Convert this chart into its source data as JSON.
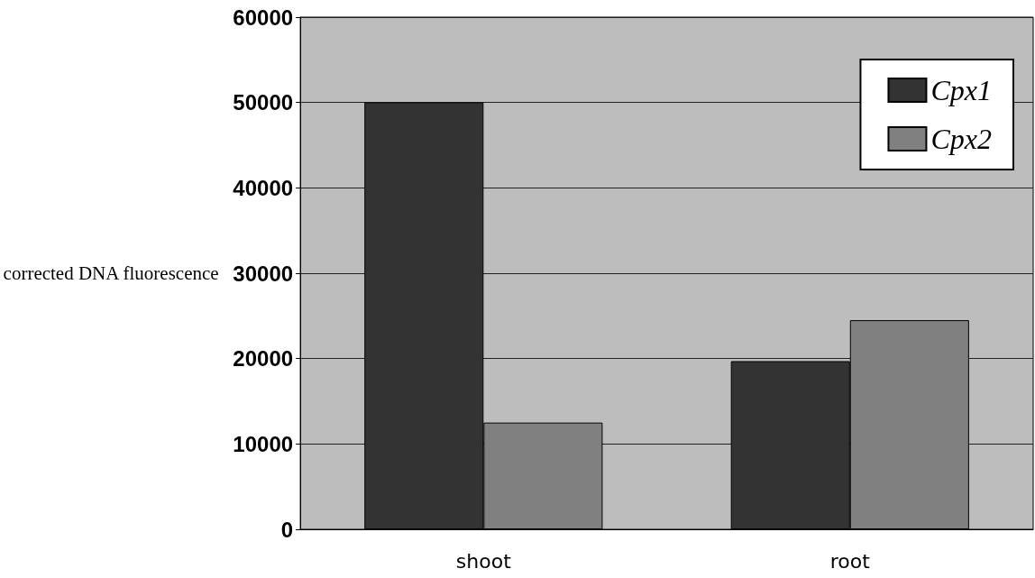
{
  "chart_data": {
    "type": "bar",
    "ylabel": "corrected DNA fluorescence",
    "categories": [
      "shoot",
      "root"
    ],
    "series": [
      {
        "name": "Cpx1",
        "color": "#333333",
        "values": [
          50000,
          19700
        ]
      },
      {
        "name": "Cpx2",
        "color": "#808080",
        "values": [
          12500,
          24500
        ]
      }
    ],
    "ylim": [
      0,
      60000
    ],
    "yticks": [
      0,
      10000,
      20000,
      30000,
      40000,
      50000,
      60000
    ],
    "grid": "y",
    "legend": "top right"
  }
}
